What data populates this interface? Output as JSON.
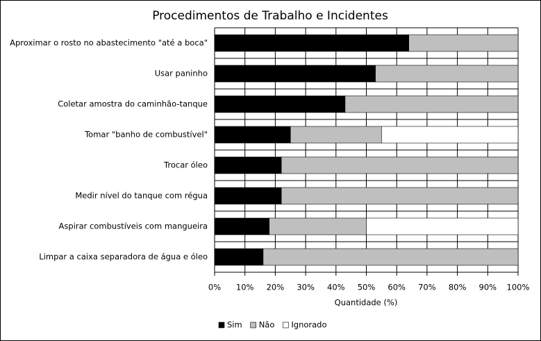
{
  "chart_data": {
    "type": "stacked_barh",
    "title": "Procedimentos de Trabalho e Incidentes",
    "xlabel": "Quantidade (%)",
    "categories": [
      "Aproximar o rosto no abastecimento \"até a boca\"",
      "Usar paninho",
      "Coletar amostra do caminhão-tanque",
      "Tomar \"banho de combustível\"",
      "Trocar óleo",
      "Medir nível do tanque com régua",
      "Aspirar combustíveis com mangueira",
      "Limpar a caixa separadora de água e óleo"
    ],
    "series": [
      {
        "name": "Sim",
        "color": "#000000",
        "values": [
          64,
          53,
          43,
          25,
          22,
          22,
          18,
          16
        ]
      },
      {
        "name": "Não",
        "color": "#bfbfbf",
        "values": [
          36,
          47,
          57,
          30,
          78,
          78,
          32,
          84
        ]
      },
      {
        "name": "Ignorado",
        "color": "#ffffff",
        "values": [
          0,
          0,
          0,
          45,
          0,
          0,
          50,
          0
        ]
      }
    ],
    "xlim": [
      0,
      100
    ],
    "xticks": [
      {
        "value": 0,
        "label": "0%"
      },
      {
        "value": 10,
        "label": "10%"
      },
      {
        "value": 20,
        "label": "20%"
      },
      {
        "value": 30,
        "label": "30%"
      },
      {
        "value": 40,
        "label": "40%"
      },
      {
        "value": 50,
        "label": "50%"
      },
      {
        "value": 60,
        "label": "60%"
      },
      {
        "value": 70,
        "label": "70%"
      },
      {
        "value": 80,
        "label": "80%"
      },
      {
        "value": 90,
        "label": "90%"
      },
      {
        "value": 100,
        "label": "100%"
      }
    ],
    "grid": true,
    "legend": "bottom"
  }
}
